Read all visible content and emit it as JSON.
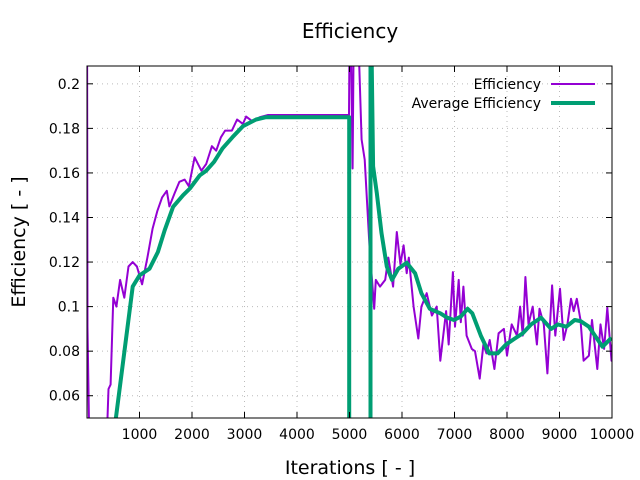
{
  "chart_data": {
    "type": "line",
    "title": "Efficiency",
    "xlabel": "Iterations [ - ]",
    "ylabel": "Efficiency [ - ]",
    "xlim": [
      0,
      10000
    ],
    "ylim": [
      0.05,
      0.208
    ],
    "xticks": [
      1000,
      2000,
      3000,
      4000,
      5000,
      6000,
      7000,
      8000,
      9000,
      10000
    ],
    "yticks": [
      0.06,
      0.08,
      0.1,
      0.12,
      0.14,
      0.16,
      0.18,
      0.2
    ],
    "ytick_labels": [
      "0.06",
      "0.08",
      "0.1",
      "0.12",
      "0.14",
      "0.16",
      "0.18",
      "0.2"
    ],
    "grid": true,
    "legend_position": "top-right",
    "series": [
      {
        "name": "Efficiency",
        "color": "#9400d3",
        "points": [
          [
            0,
            0.25
          ],
          [
            10,
            0.091
          ],
          [
            50,
            0.03
          ],
          [
            390,
            0.05
          ],
          [
            410,
            0.063
          ],
          [
            450,
            0.065
          ],
          [
            500,
            0.104
          ],
          [
            560,
            0.1
          ],
          [
            630,
            0.112
          ],
          [
            710,
            0.104
          ],
          [
            790,
            0.118
          ],
          [
            870,
            0.12
          ],
          [
            950,
            0.118
          ],
          [
            1050,
            0.11
          ],
          [
            1150,
            0.122
          ],
          [
            1250,
            0.135
          ],
          [
            1340,
            0.143
          ],
          [
            1430,
            0.149
          ],
          [
            1520,
            0.152
          ],
          [
            1570,
            0.145
          ],
          [
            1670,
            0.151
          ],
          [
            1760,
            0.156
          ],
          [
            1860,
            0.157
          ],
          [
            1940,
            0.154
          ],
          [
            2050,
            0.167
          ],
          [
            2180,
            0.161
          ],
          [
            2270,
            0.164
          ],
          [
            2380,
            0.172
          ],
          [
            2460,
            0.17
          ],
          [
            2550,
            0.176
          ],
          [
            2630,
            0.179
          ],
          [
            2760,
            0.179
          ],
          [
            2860,
            0.184
          ],
          [
            2970,
            0.182
          ],
          [
            3030,
            0.1853
          ],
          [
            3160,
            0.183
          ],
          [
            3290,
            0.185
          ],
          [
            3450,
            0.186
          ],
          [
            4990,
            0.186
          ],
          [
            5010,
            0.25
          ],
          [
            5060,
            0.162
          ],
          [
            5090,
            0.25
          ],
          [
            5130,
            0.25
          ],
          [
            5230,
            0.175
          ],
          [
            5290,
            0.166
          ],
          [
            5380,
            0.127
          ],
          [
            5470,
            0.099
          ],
          [
            5500,
            0.112
          ],
          [
            5580,
            0.109
          ],
          [
            5680,
            0.112
          ],
          [
            5740,
            0.122
          ],
          [
            5830,
            0.109
          ],
          [
            5900,
            0.1335
          ],
          [
            5970,
            0.119
          ],
          [
            6030,
            0.1275
          ],
          [
            6090,
            0.115
          ],
          [
            6130,
            0.122
          ],
          [
            6220,
            0.1
          ],
          [
            6310,
            0.0857
          ],
          [
            6370,
            0.1
          ],
          [
            6470,
            0.106
          ],
          [
            6570,
            0.096
          ],
          [
            6660,
            0.1
          ],
          [
            6730,
            0.0757
          ],
          [
            6840,
            0.098
          ],
          [
            6890,
            0.083
          ],
          [
            6970,
            0.1155
          ],
          [
            7010,
            0.091
          ],
          [
            7080,
            0.112
          ],
          [
            7120,
            0.093
          ],
          [
            7170,
            0.109
          ],
          [
            7230,
            0.087
          ],
          [
            7330,
            0.081
          ],
          [
            7390,
            0.08
          ],
          [
            7480,
            0.0677
          ],
          [
            7550,
            0.083
          ],
          [
            7610,
            0.079
          ],
          [
            7670,
            0.085
          ],
          [
            7760,
            0.072
          ],
          [
            7840,
            0.088
          ],
          [
            7940,
            0.09
          ],
          [
            8000,
            0.078
          ],
          [
            8090,
            0.092
          ],
          [
            8190,
            0.087
          ],
          [
            8250,
            0.1
          ],
          [
            8300,
            0.087
          ],
          [
            8350,
            0.1133
          ],
          [
            8410,
            0.092
          ],
          [
            8490,
            0.1
          ],
          [
            8570,
            0.083
          ],
          [
            8620,
            0.099
          ],
          [
            8700,
            0.092
          ],
          [
            8770,
            0.07
          ],
          [
            8860,
            0.1095
          ],
          [
            8920,
            0.087
          ],
          [
            9010,
            0.108
          ],
          [
            9080,
            0.085
          ],
          [
            9150,
            0.092
          ],
          [
            9220,
            0.1035
          ],
          [
            9270,
            0.098
          ],
          [
            9330,
            0.1035
          ],
          [
            9400,
            0.094
          ],
          [
            9460,
            0.0757
          ],
          [
            9560,
            0.078
          ],
          [
            9620,
            0.094
          ],
          [
            9720,
            0.072
          ],
          [
            9780,
            0.092
          ],
          [
            9850,
            0.081
          ],
          [
            9910,
            0.0995
          ],
          [
            9990,
            0.0757
          ],
          [
            10000,
            0.083
          ]
        ]
      },
      {
        "name": "Average Efficiency",
        "color": "#009e73",
        "points": [
          [
            550,
            0.05
          ],
          [
            870,
            0.109
          ],
          [
            1000,
            0.114
          ],
          [
            1190,
            0.117
          ],
          [
            1350,
            0.1245
          ],
          [
            1480,
            0.1343
          ],
          [
            1640,
            0.1448
          ],
          [
            1830,
            0.15
          ],
          [
            1960,
            0.153
          ],
          [
            2150,
            0.159
          ],
          [
            2270,
            0.161
          ],
          [
            2420,
            0.165
          ],
          [
            2580,
            0.171
          ],
          [
            2770,
            0.176
          ],
          [
            2970,
            0.181
          ],
          [
            3220,
            0.184
          ],
          [
            3410,
            0.185
          ],
          [
            4995,
            0.185
          ],
          [
            4995,
            0.03
          ],
          [
            5400,
            0.03
          ],
          [
            5400,
            0.25
          ],
          [
            5450,
            0.163
          ],
          [
            5520,
            0.151
          ],
          [
            5610,
            0.133
          ],
          [
            5710,
            0.118
          ],
          [
            5810,
            0.112
          ],
          [
            5930,
            0.117
          ],
          [
            6090,
            0.1197
          ],
          [
            6250,
            0.115
          ],
          [
            6370,
            0.106
          ],
          [
            6530,
            0.099
          ],
          [
            6730,
            0.097
          ],
          [
            6860,
            0.095
          ],
          [
            6990,
            0.094
          ],
          [
            7120,
            0.0955
          ],
          [
            7250,
            0.099
          ],
          [
            7340,
            0.097
          ],
          [
            7500,
            0.087
          ],
          [
            7660,
            0.079
          ],
          [
            7820,
            0.079
          ],
          [
            7980,
            0.083
          ],
          [
            8140,
            0.0855
          ],
          [
            8300,
            0.088
          ],
          [
            8460,
            0.092
          ],
          [
            8650,
            0.095
          ],
          [
            8840,
            0.09
          ],
          [
            8970,
            0.092
          ],
          [
            9130,
            0.091
          ],
          [
            9290,
            0.094
          ],
          [
            9400,
            0.0935
          ],
          [
            9560,
            0.091
          ],
          [
            9820,
            0.082
          ],
          [
            9990,
            0.086
          ]
        ]
      }
    ]
  }
}
